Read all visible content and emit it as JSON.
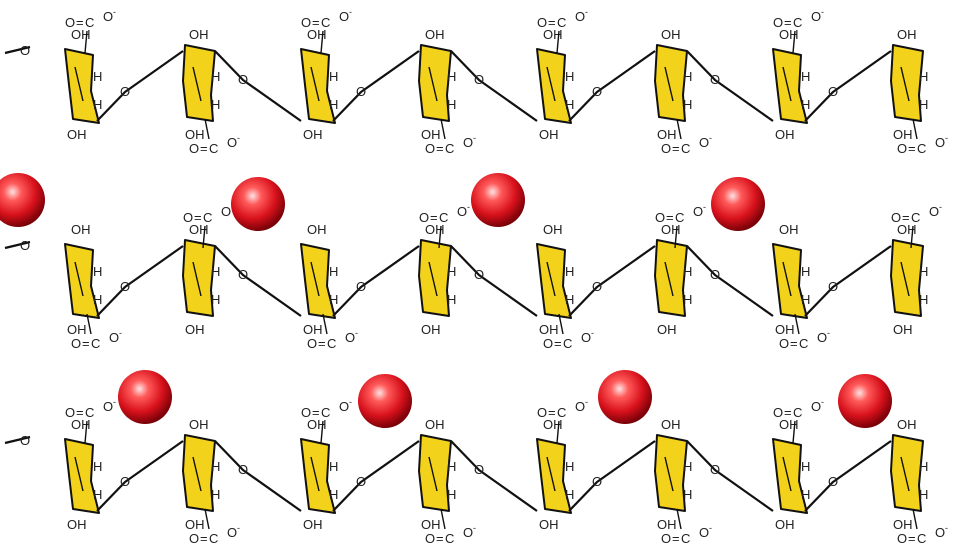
{
  "labels": {
    "hydroxyl": "OH",
    "ring_hydrogen": "H",
    "glycosidic_oxygen": "O",
    "carboxylate": {
      "left_oxygen": "O",
      "double_bond": "=",
      "carbon": "C",
      "right_oxygen": "O",
      "charge": "-"
    }
  },
  "chains": [
    {
      "units": [
        {
          "carboxylate": "top"
        },
        {
          "carboxylate": "bottom"
        },
        {
          "carboxylate": "top"
        },
        {
          "carboxylate": "bottom"
        },
        {
          "carboxylate": "top"
        },
        {
          "carboxylate": "bottom"
        },
        {
          "carboxylate": "top"
        },
        {
          "carboxylate": "bottom"
        }
      ]
    },
    {
      "units": [
        {
          "carboxylate": "bottom"
        },
        {
          "carboxylate": "top"
        },
        {
          "carboxylate": "bottom"
        },
        {
          "carboxylate": "top"
        },
        {
          "carboxylate": "bottom"
        },
        {
          "carboxylate": "top"
        },
        {
          "carboxylate": "bottom"
        },
        {
          "carboxylate": "top"
        }
      ]
    },
    {
      "units": [
        {
          "carboxylate": "top"
        },
        {
          "carboxylate": "bottom"
        },
        {
          "carboxylate": "top"
        },
        {
          "carboxylate": "bottom"
        },
        {
          "carboxylate": "top"
        },
        {
          "carboxylate": "bottom"
        },
        {
          "carboxylate": "top"
        },
        {
          "carboxylate": "bottom"
        }
      ]
    }
  ],
  "cation_rows": [
    4,
    4
  ],
  "colors": {
    "ring_fill": "#f3d21c",
    "bond": "#111111",
    "cation_highlight": "#ffe2e2",
    "cation_mid": "#e0202a",
    "cation_dark": "#7a0008"
  }
}
